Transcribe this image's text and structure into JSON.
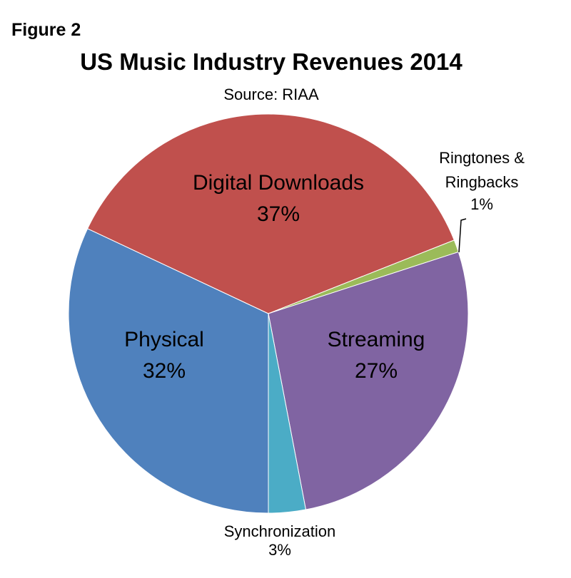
{
  "figure_label": "Figure 2",
  "chart_data": {
    "type": "pie",
    "title": "US Music Industry Revenues 2014",
    "subtitle": "Source: RIAA",
    "start_angle_deg": 180,
    "direction": "clockwise",
    "slices": [
      {
        "name": "Physical",
        "value": 32,
        "label": "32%",
        "color": "#4F81BD"
      },
      {
        "name": "Digital Downloads",
        "value": 37,
        "label": "37%",
        "color": "#C0504D"
      },
      {
        "name": "Ringtones & Ringbacks",
        "value": 1,
        "label": "1%",
        "color": "#9BBB59"
      },
      {
        "name": "Streaming",
        "value": 27,
        "label": "27%",
        "color": "#8064A2"
      },
      {
        "name": "Synchronization",
        "value": 3,
        "label": "3%",
        "color": "#4BACC6"
      }
    ]
  }
}
